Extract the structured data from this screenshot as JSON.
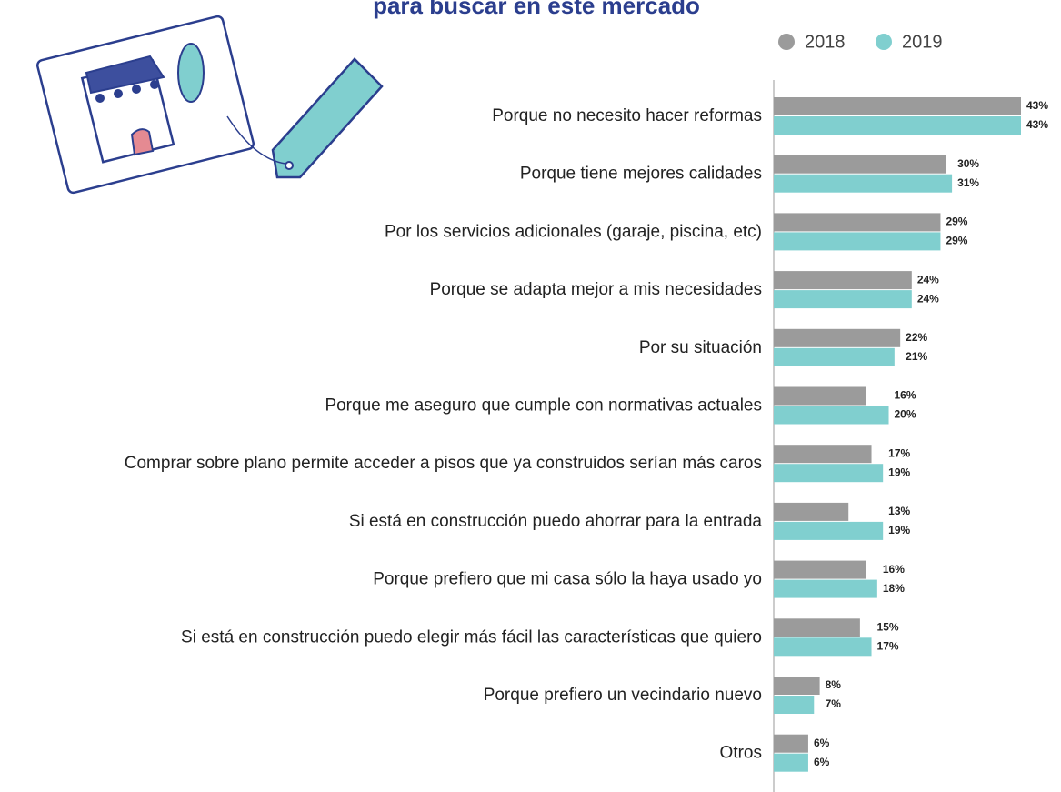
{
  "chart_data": {
    "type": "bar",
    "orientation": "horizontal",
    "title": "para buscar en este mercado",
    "categories": [
      "Porque no necesito hacer reformas",
      "Porque tiene mejores calidades",
      "Por los servicios adicionales (garaje, piscina, etc)",
      "Porque se adapta mejor a mis necesidades",
      "Por su situación",
      "Porque me aseguro que cumple con normativas actuales",
      "Comprar sobre plano permite acceder a pisos que ya construidos serían más caros",
      "Si está en construcción puedo ahorrar para la entrada",
      "Porque prefiero que mi casa sólo la haya usado yo",
      "Si está en construcción puedo elegir más fácil las características que quiero",
      "Porque prefiero un vecindario nuevo",
      "Otros"
    ],
    "series": [
      {
        "name": "2018",
        "color": "#9b9b9b",
        "values": [
          43,
          30,
          29,
          24,
          22,
          16,
          17,
          13,
          16,
          15,
          8,
          6
        ],
        "value_labels": [
          "43%",
          "30%",
          "29%",
          "24%",
          "22%",
          "16%",
          "17%",
          "13%",
          "16%",
          "15%",
          "8%",
          "6%"
        ]
      },
      {
        "name": "2019",
        "color": "#80cfcf",
        "values": [
          43,
          31,
          29,
          24,
          21,
          20,
          19,
          19,
          18,
          17,
          7,
          6
        ],
        "value_labels": [
          "43%",
          "31%",
          "29%",
          "24%",
          "21%",
          "20%",
          "19%",
          "19%",
          "18%",
          "17%",
          "7%",
          "6%"
        ]
      }
    ],
    "legend": "top-right"
  }
}
